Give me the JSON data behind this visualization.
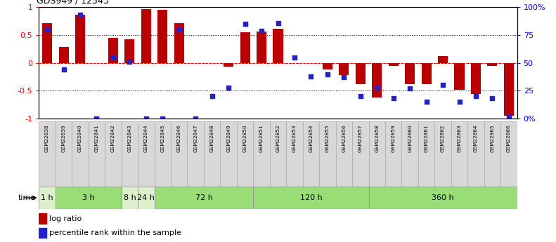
{
  "title": "GDS949 / 12543",
  "samples": [
    "GSM22838",
    "GSM22839",
    "GSM22840",
    "GSM22841",
    "GSM22842",
    "GSM22843",
    "GSM22844",
    "GSM22845",
    "GSM22846",
    "GSM22847",
    "GSM22848",
    "GSM22849",
    "GSM22850",
    "GSM22851",
    "GSM22852",
    "GSM22853",
    "GSM22854",
    "GSM22855",
    "GSM22856",
    "GSM22857",
    "GSM22858",
    "GSM22859",
    "GSM22860",
    "GSM22861",
    "GSM22862",
    "GSM22863",
    "GSM22864",
    "GSM22865",
    "GSM22866"
  ],
  "log_ratio": [
    0.72,
    0.28,
    0.87,
    0.0,
    0.45,
    0.43,
    0.97,
    0.96,
    0.72,
    0.0,
    0.0,
    -0.07,
    0.55,
    0.56,
    0.62,
    0.0,
    0.0,
    -0.12,
    -0.22,
    -0.38,
    -0.62,
    -0.05,
    -0.38,
    -0.38,
    0.12,
    -0.48,
    -0.56,
    -0.05,
    -0.95
  ],
  "pct_rank": [
    80,
    44,
    93,
    0,
    55,
    51,
    0,
    0,
    80,
    0,
    20,
    28,
    85,
    79,
    86,
    55,
    38,
    40,
    37,
    20,
    28,
    18,
    27,
    15,
    30,
    15,
    20,
    18,
    2
  ],
  "bar_color": "#bb0000",
  "dot_color": "#2222cc",
  "time_groups": [
    {
      "label": "1 h",
      "start": 0,
      "end": 1
    },
    {
      "label": "3 h",
      "start": 1,
      "end": 5
    },
    {
      "label": "8 h",
      "start": 5,
      "end": 6
    },
    {
      "label": "24 h",
      "start": 6,
      "end": 7
    },
    {
      "label": "72 h",
      "start": 7,
      "end": 13
    },
    {
      "label": "120 h",
      "start": 13,
      "end": 20
    },
    {
      "label": "360 h",
      "start": 20,
      "end": 29
    }
  ],
  "time_group_colors": [
    "#ddf0cc",
    "#99dd77",
    "#ddf0cc",
    "#ddf0cc",
    "#99dd77",
    "#99dd77",
    "#99dd77"
  ],
  "ylim": [
    -1,
    1
  ],
  "yticks_left": [
    -1,
    -0.5,
    0,
    0.5,
    1
  ],
  "ytick_labels_left": [
    "-1",
    "-0.5",
    "0",
    "0.5",
    "1"
  ],
  "yticks_right_pct": [
    0,
    25,
    50,
    75,
    100
  ],
  "ytick_labels_right": [
    "0%",
    "25",
    "50",
    "75",
    "100%"
  ],
  "hlines": [
    -0.5,
    0.0,
    0.5
  ],
  "hline_styles": [
    "dotted",
    "dotted",
    "dotted"
  ],
  "hline_colors": [
    "black",
    "red",
    "black"
  ],
  "sample_box_color": "#d8d8d8",
  "legend_items": [
    {
      "label": "log ratio",
      "color": "#bb0000",
      "marker": "square"
    },
    {
      "label": "percentile rank within the sample",
      "color": "#2222cc",
      "marker": "square"
    }
  ]
}
